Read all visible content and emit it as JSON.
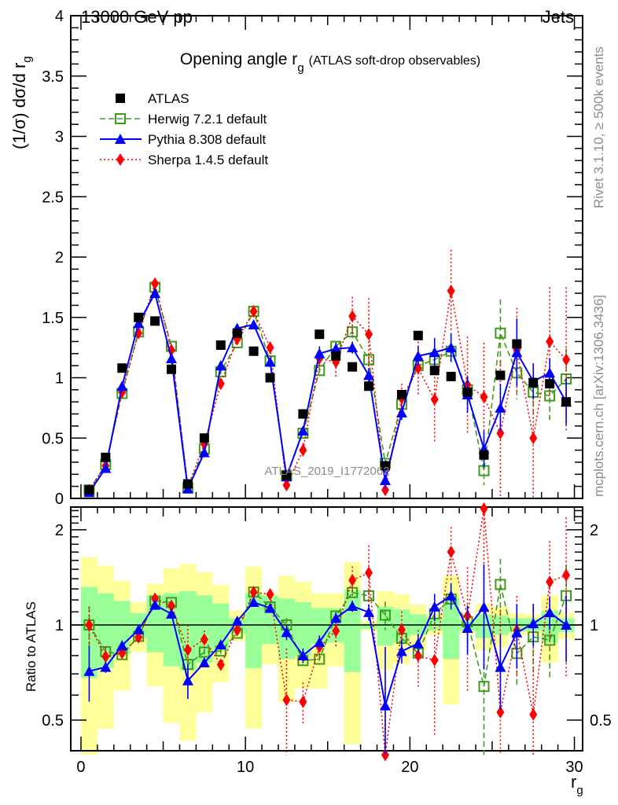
{
  "header": {
    "energy_label": "13000 GeV pp",
    "process_label": "Jets"
  },
  "side_text": {
    "rivet": "Rivet 3.1.10, ≥ 500k events",
    "source": "mcplots.cern.ch [arXiv:1306.3436]"
  },
  "watermark": "ATLAS_2019_I1772062",
  "chart_data": {
    "type": "scatter",
    "title": "Opening angle r",
    "title_sub": "g",
    "title_suffix": "(ATLAS soft-drop observables)",
    "ylabel": "(1/σ) dσ/d r",
    "ylabel_sub": "g",
    "xlabel": "r",
    "xlabel_sub": "g",
    "ratio_ylabel": "Ratio to ATLAS",
    "xlim": [
      -0.62,
      30.5
    ],
    "ylim": [
      0,
      4
    ],
    "ratio_ylim": [
      0.4,
      2.36
    ],
    "ratio_scale": "log",
    "x_ticks": [
      "0",
      "10",
      "20",
      "30"
    ],
    "y_ticks": [
      "0",
      "0.5",
      "1",
      "1.5",
      "2",
      "2.5",
      "3",
      "3.5",
      "4"
    ],
    "ratio_ticks": [
      "0.5",
      "1",
      "2"
    ],
    "legend_position": "top-left",
    "x": [
      0.5,
      1.5,
      2.5,
      3.5,
      4.5,
      5.5,
      6.5,
      7.5,
      8.5,
      9.5,
      10.5,
      11.5,
      12.5,
      13.5,
      14.5,
      15.5,
      16.5,
      17.5,
      18.5,
      19.5,
      20.5,
      21.5,
      22.5,
      23.5,
      24.5,
      25.5,
      26.5,
      27.5,
      28.5,
      29.5
    ],
    "series": [
      {
        "name": "ATLAS",
        "color": "#000000",
        "marker": "square",
        "values": [
          0.07,
          0.34,
          1.08,
          1.5,
          1.47,
          1.07,
          0.12,
          0.5,
          1.27,
          1.37,
          1.22,
          1.0,
          0.19,
          0.7,
          1.36,
          1.18,
          1.09,
          0.93,
          0.27,
          0.86,
          1.35,
          1.06,
          1.01,
          0.88,
          0.36,
          1.02,
          1.28,
          0.96,
          0.95,
          0.8
        ]
      },
      {
        "name": "Herwig 7.2.1 default",
        "color": "#3f9a1c",
        "marker": "open-square",
        "line": "dashed",
        "values": [
          0.07,
          0.28,
          0.87,
          1.38,
          1.75,
          1.26,
          0.09,
          0.41,
          1.05,
          1.29,
          1.55,
          1.14,
          0.19,
          0.54,
          1.06,
          1.26,
          1.38,
          1.15,
          0.29,
          0.78,
          1.1,
          1.15,
          1.22,
          0.9,
          0.23,
          1.37,
          1.04,
          0.88,
          0.85,
          0.99
        ],
        "errors": [
          0.01,
          0.01,
          0.02,
          0.02,
          0.02,
          0.02,
          0.01,
          0.01,
          0.02,
          0.02,
          0.02,
          0.02,
          0.01,
          0.02,
          0.03,
          0.04,
          0.05,
          0.05,
          0.03,
          0.06,
          0.06,
          0.08,
          0.08,
          0.12,
          0.12,
          0.28,
          0.22,
          0.22,
          0.2,
          0.25
        ]
      },
      {
        "name": "Pythia 8.308 default",
        "color": "#0000ff",
        "marker": "triangle",
        "line": "solid",
        "values": [
          0.05,
          0.25,
          0.93,
          1.45,
          1.7,
          1.16,
          0.08,
          0.38,
          1.1,
          1.41,
          1.44,
          1.13,
          0.18,
          0.56,
          1.2,
          1.24,
          1.25,
          1.02,
          0.15,
          0.71,
          1.18,
          1.21,
          1.25,
          0.86,
          0.41,
          0.75,
          1.21,
          0.97,
          1.04,
          0.8
        ],
        "errors": [
          0.01,
          0.01,
          0.01,
          0.02,
          0.02,
          0.02,
          0.01,
          0.01,
          0.02,
          0.02,
          0.02,
          0.02,
          0.01,
          0.03,
          0.06,
          0.05,
          0.05,
          0.06,
          0.08,
          0.06,
          0.08,
          0.12,
          0.12,
          0.15,
          0.15,
          0.2,
          0.28,
          0.15,
          0.12,
          0.19
        ]
      },
      {
        "name": "Sherpa 1.4.5 default",
        "color": "#ff0000",
        "marker": "diamond",
        "line": "dotted",
        "values": [
          0.07,
          0.27,
          0.88,
          1.37,
          1.78,
          1.23,
          0.1,
          0.45,
          0.95,
          1.32,
          1.55,
          1.25,
          0.11,
          0.4,
          1.16,
          1.13,
          1.51,
          1.36,
          0.07,
          0.83,
          1.08,
          0.82,
          1.72,
          0.94,
          0.84,
          0.54,
          1.23,
          0.5,
          1.3,
          1.15
        ],
        "errors": [
          0.01,
          0.02,
          0.02,
          0.03,
          0.03,
          0.03,
          0.02,
          0.03,
          0.04,
          0.05,
          0.05,
          0.05,
          0.05,
          0.06,
          0.08,
          0.12,
          0.16,
          0.3,
          0.1,
          0.12,
          0.22,
          0.35,
          0.34,
          0.4,
          0.45,
          0.6,
          0.35,
          0.5,
          0.45,
          0.6
        ]
      }
    ],
    "bands": {
      "yellow_lo": [
        0.35,
        0.47,
        0.62,
        0.82,
        0.64,
        0.49,
        0.43,
        0.53,
        0.66,
        0.89,
        0.47,
        0.75,
        0.57,
        0.63,
        0.63,
        0.74,
        0.42,
        0.96,
        0.72,
        0.75,
        0.83,
        0.93,
        0.56,
        0.94,
        0.83,
        0.85,
        0.93,
        0.93,
        0.76,
        0.9
      ],
      "yellow_hi": [
        1.64,
        1.54,
        1.38,
        1.18,
        1.35,
        1.51,
        1.56,
        1.47,
        1.34,
        1.11,
        1.53,
        1.26,
        1.43,
        1.37,
        1.26,
        1.26,
        1.58,
        1.03,
        1.28,
        1.25,
        1.16,
        1.08,
        1.43,
        1.05,
        1.17,
        1.14,
        1.09,
        1.08,
        1.24,
        1.09
      ],
      "green_lo": [
        0.68,
        0.73,
        0.81,
        0.91,
        0.82,
        0.74,
        0.72,
        0.76,
        0.83,
        0.94,
        0.73,
        0.87,
        0.78,
        0.8,
        0.87,
        0.88,
        0.71,
        0.97,
        0.86,
        0.88,
        0.93,
        0.96,
        0.78,
        0.96,
        0.91,
        0.93,
        0.95,
        0.96,
        0.88,
        0.95
      ],
      "green_hi": [
        1.32,
        1.26,
        1.19,
        1.09,
        1.24,
        1.26,
        1.28,
        1.24,
        1.17,
        1.05,
        1.26,
        1.24,
        1.21,
        1.18,
        1.13,
        1.13,
        1.29,
        1.01,
        1.14,
        1.12,
        1.08,
        1.05,
        1.22,
        1.03,
        1.08,
        1.07,
        1.05,
        1.05,
        1.11,
        1.05
      ],
      "yellow_color": "#ffff99",
      "green_color": "#99ff99"
    }
  }
}
